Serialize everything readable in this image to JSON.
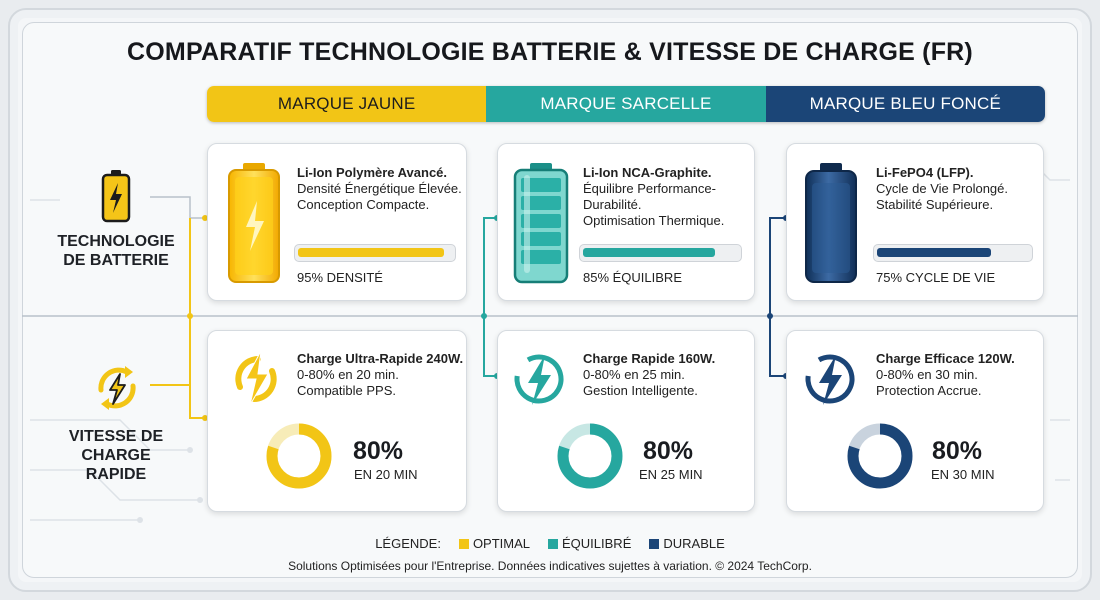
{
  "title": "COMPARATIF TECHNOLOGIE BATTERIE & VITESSE DE CHARGE (FR)",
  "colors": {
    "yellow": "#f2c516",
    "teal": "#26a79f",
    "navy": "#1b4577"
  },
  "brands": [
    {
      "label": "MARQUE JAUNE",
      "color": "#f2c516"
    },
    {
      "label": "MARQUE SARCELLE",
      "color": "#26a79f"
    },
    {
      "label": "MARQUE BLEU FONCÉ",
      "color": "#1b4577"
    }
  ],
  "rows": {
    "battery": {
      "label_line1": "TECHNOLOGIE",
      "label_line2": "DE BATTERIE",
      "icon": "battery-bolt-icon"
    },
    "charge": {
      "label_line1": "VITESSE DE",
      "label_line2": "CHARGE",
      "label_line3": "RAPIDE",
      "icon": "fast-charge-icon"
    }
  },
  "battery_cards": [
    {
      "title": "Li-Ion Polymère Avancé.",
      "line2": "Densité Énergétique Élevée.",
      "line3": "Conception Compacte.",
      "metric_label": "95% DENSITÉ",
      "metric_value": 95,
      "icon": "yellow-battery-icon"
    },
    {
      "title": "Li-Ion NCA-Graphite.",
      "line2": "Équilibre Performance-Durabilité.",
      "line3": "Optimisation Thermique.",
      "metric_label": "85% ÉQUILIBRE",
      "metric_value": 85,
      "icon": "teal-battery-icon"
    },
    {
      "title": "Li-FePO4 (LFP).",
      "line2": "Cycle de Vie Prolongé.",
      "line3": "Stabilité Supérieure.",
      "metric_label": "75% CYCLE DE VIE",
      "metric_value": 75,
      "icon": "navy-battery-icon"
    }
  ],
  "charge_cards": [
    {
      "title": "Charge Ultra-Rapide 240W.",
      "line2": "0-80% en 20 min.",
      "line3": "Compatible PPS.",
      "percent": "80%",
      "percent_value": 80,
      "sub": "EN 20 MIN",
      "icon": "yellow-bolt-icon"
    },
    {
      "title": "Charge Rapide 160W.",
      "line2": "0-80% en 25 min.",
      "line3": "Gestion Intelligente.",
      "percent": "80%",
      "percent_value": 80,
      "sub": "EN 25 MIN",
      "icon": "teal-bolt-icon"
    },
    {
      "title": "Charge Efficace 120W.",
      "line2": "0-80% en 30 min.",
      "line3": "Protection Accrue.",
      "percent": "80%",
      "percent_value": 80,
      "sub": "EN 30 MIN",
      "icon": "navy-bolt-icon"
    }
  ],
  "legend": {
    "label": "LÉGENDE:",
    "items": [
      {
        "label": "OPTIMAL",
        "color": "#f2c516"
      },
      {
        "label": "ÉQUILIBRÉ",
        "color": "#26a79f"
      },
      {
        "label": "DURABLE",
        "color": "#1b4577"
      }
    ]
  },
  "footer": "Solutions Optimisées pour l'Entreprise. Données indicatives sujettes à variation. © 2024 TechCorp."
}
